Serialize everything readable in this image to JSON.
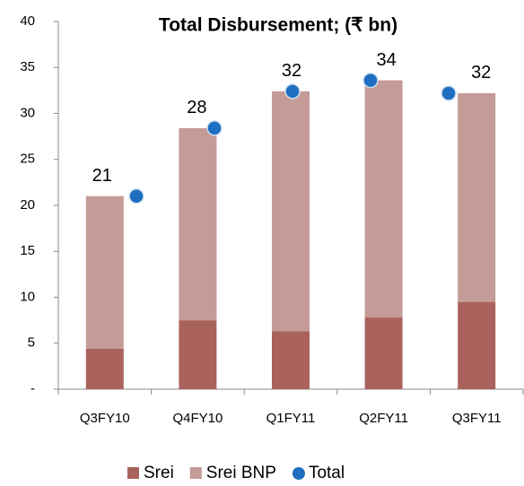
{
  "chart_data": {
    "type": "bar",
    "stacked": true,
    "title": "Total Disbursement; (₹ bn)",
    "categories": [
      "Q3FY10",
      "Q4FY10",
      "Q1FY11",
      "Q2FY11",
      "Q3FY11"
    ],
    "series": [
      {
        "name": "Srei",
        "color": "#a9625c",
        "values": [
          4.4,
          7.5,
          6.3,
          7.8,
          9.5
        ]
      },
      {
        "name": "Srei BNP",
        "color": "#c49b97",
        "values": [
          16.6,
          20.9,
          26.1,
          25.8,
          22.7
        ]
      },
      {
        "name": "Total",
        "type": "scatter",
        "color": "#1f6fc0",
        "values": [
          21,
          28.4,
          32.4,
          33.6,
          32.2
        ],
        "value_labels": [
          "21",
          "28",
          "32",
          "34",
          "32"
        ]
      }
    ],
    "ylim": [
      0,
      40
    ],
    "yticks": [
      {
        "value": 0,
        "label": "-"
      },
      5,
      10,
      15,
      20,
      25,
      30,
      35,
      40
    ]
  }
}
